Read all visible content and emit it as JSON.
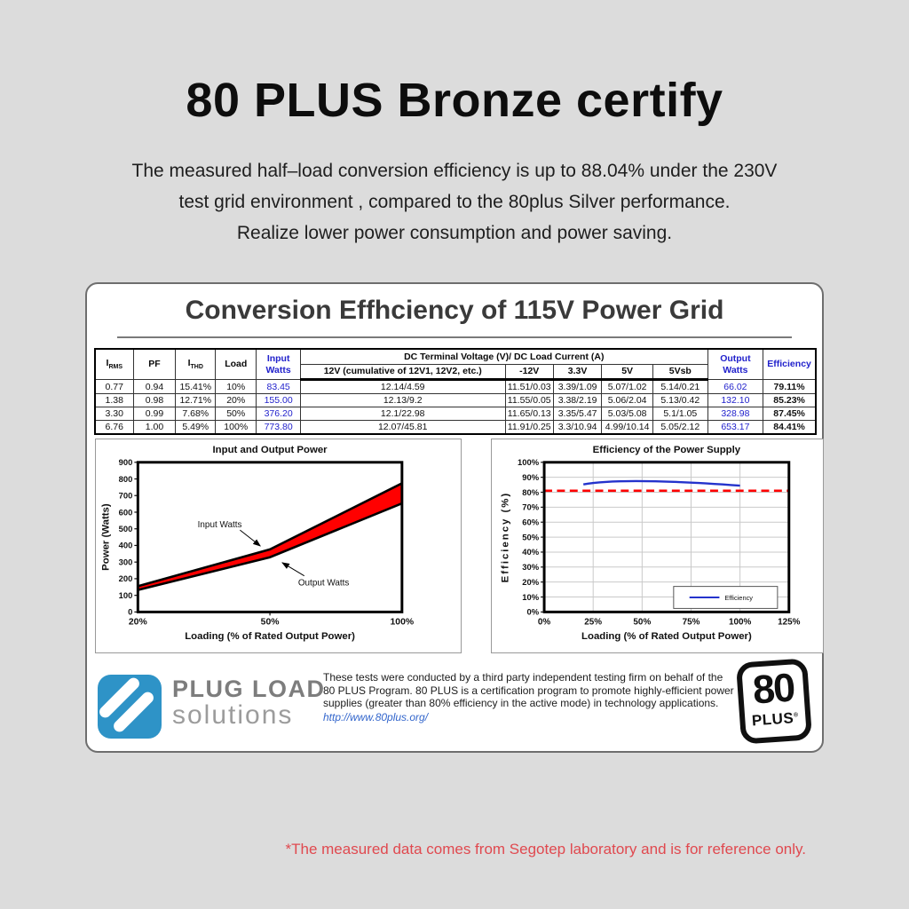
{
  "page": {
    "background": "#dcdcdc",
    "title": "80 PLUS Bronze certify",
    "subtitle_lines": [
      "The measured half–load conversion efficiency is up to 88.04% under the 230V",
      "test grid environment , compared to the 80plus Silver performance.",
      "Realize lower power consumption and power saving."
    ],
    "footnote": "*The measured data comes from Segotep laboratory and is for reference only.",
    "footnote_color": "#e0494f"
  },
  "card": {
    "title": "Conversion Effhciency of 115V Power Grid",
    "table": {
      "accent_color": "#2222cc",
      "headers": {
        "irms_main": "I",
        "irms_sub": "RMS",
        "pf": "PF",
        "ithd_main": "I",
        "ithd_sub": "THD",
        "load": "Load",
        "input_watts": "Input Watts",
        "dc_group": "DC Terminal Voltage (V)/ DC Load Current (A)",
        "dc_12v": "12V (cumulative of 12V1, 12V2, etc.)",
        "dc_neg12v": "-12V",
        "dc_3v3": "3.3V",
        "dc_5v": "5V",
        "dc_5vsb": "5Vsb",
        "output_watts": "Output Watts",
        "efficiency": "Efficiency"
      },
      "rows": [
        [
          "0.77",
          "0.94",
          "15.41%",
          "10%",
          "83.45",
          "12.14/4.59",
          "11.51/0.03",
          "3.39/1.09",
          "5.07/1.02",
          "5.14/0.21",
          "66.02",
          "79.11%"
        ],
        [
          "1.38",
          "0.98",
          "12.71%",
          "20%",
          "155.00",
          "12.13/9.2",
          "11.55/0.05",
          "3.38/2.19",
          "5.06/2.04",
          "5.13/0.42",
          "132.10",
          "85.23%"
        ],
        [
          "3.30",
          "0.99",
          "7.68%",
          "50%",
          "376.20",
          "12.1/22.98",
          "11.65/0.13",
          "3.35/5.47",
          "5.03/5.08",
          "5.1/1.05",
          "328.98",
          "87.45%"
        ],
        [
          "6.76",
          "1.00",
          "5.49%",
          "100%",
          "773.80",
          "12.07/45.81",
          "11.91/0.25",
          "3.3/10.94",
          "4.99/10.14",
          "5.05/2.12",
          "653.17",
          "84.41%"
        ]
      ]
    },
    "footer": {
      "logo": {
        "line1": "PLUG LOAD",
        "line2": "solutions",
        "color": "#2e93c7"
      },
      "disclaimer": "These tests were conducted by a third party independent testing firm on behalf of the 80 PLUS Program. 80 PLUS is a certification program to promote highly-efficient power supplies (greater than 80% efficiency in the active mode) in technology applications.",
      "link": "http://www.80plus.org/",
      "badge": {
        "number": "80",
        "word": "PLUS",
        "reg": "®"
      }
    }
  },
  "chart_data": [
    {
      "type": "area",
      "title": "Input and Output Power",
      "xlabel": "Loading (% of Rated Output Power)",
      "ylabel": "Power (Watts)",
      "categories": [
        "20%",
        "50%",
        "100%"
      ],
      "series": [
        {
          "name": "Input Watts",
          "values": [
            155.0,
            376.2,
            773.8
          ]
        },
        {
          "name": "Output Watts",
          "values": [
            132.1,
            328.98,
            653.17
          ]
        }
      ],
      "ylim": [
        0,
        900
      ],
      "ytick_step": 100,
      "band_color": "#ff0000",
      "line_color": "#000000",
      "grid": false,
      "legend_position": "none"
    },
    {
      "type": "line",
      "title": "Efficiency of the Power Supply",
      "xlabel": "Loading (% of Rated Output Power)",
      "ylabel": "Efficiency (%)",
      "x": [
        20,
        50,
        100
      ],
      "series": [
        {
          "name": "Efficiency",
          "values": [
            85.23,
            87.45,
            84.41
          ],
          "color": "#2433cc"
        }
      ],
      "xlim": [
        0,
        125
      ],
      "xtick_values": [
        0,
        25,
        50,
        75,
        100,
        125
      ],
      "xtick_labels": [
        "0%",
        "25%",
        "50%",
        "75%",
        "100%",
        "125%"
      ],
      "ylim": [
        0,
        100
      ],
      "ytick_values": [
        0,
        10,
        20,
        30,
        40,
        50,
        60,
        70,
        80,
        90,
        100
      ],
      "ytick_labels": [
        "0%",
        "10%",
        "20%",
        "30%",
        "40%",
        "50%",
        "60%",
        "70%",
        "80%",
        "90%",
        "100%"
      ],
      "reference_line": {
        "y": 81,
        "color": "#ff0000",
        "style": "dashed"
      },
      "grid": true,
      "legend": {
        "label": "Efficiency",
        "position": "bottom-right"
      }
    }
  ]
}
